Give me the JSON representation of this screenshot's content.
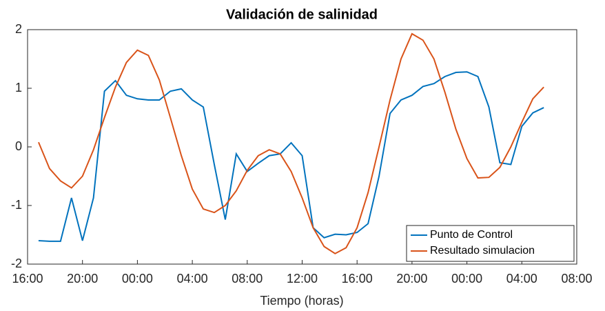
{
  "chart_data": {
    "type": "line",
    "title": "Validación de salinidad",
    "xlabel": "Tiempo (horas)",
    "x": [
      0.8,
      1.6,
      2.4,
      3.2,
      4,
      4.8,
      5.6,
      6.4,
      7.2,
      8,
      8.8,
      9.6,
      10.4,
      11.2,
      12,
      12.8,
      13.6,
      14.4,
      15.2,
      16,
      16.8,
      17.6,
      18.4,
      19.2,
      20,
      20.8,
      21.6,
      22.4,
      23.2,
      24,
      24.8,
      25.6,
      26.4,
      27.2,
      28,
      28.8,
      29.6,
      30.4,
      31.2,
      32,
      32.8,
      33.6,
      34.4,
      35.2,
      36,
      36.8,
      37.6
    ],
    "series": [
      {
        "name": "Punto de Control",
        "color": "#0072bd",
        "values": [
          -1.6,
          -1.61,
          -1.61,
          -0.87,
          -1.6,
          -0.87,
          0.95,
          1.13,
          0.88,
          0.82,
          0.8,
          0.8,
          0.95,
          0.99,
          0.8,
          0.68,
          -0.3,
          -1.24,
          -0.12,
          -0.42,
          -0.28,
          -0.15,
          -0.12,
          0.07,
          -0.15,
          -1.38,
          -1.55,
          -1.49,
          -1.5,
          -1.46,
          -1.31,
          -0.5,
          0.57,
          0.8,
          0.88,
          1.03,
          1.08,
          1.2,
          1.27,
          1.28,
          1.2,
          0.68,
          -0.27,
          -0.3,
          0.35,
          0.58,
          0.67
        ]
      },
      {
        "name": "Resultado simulacion",
        "color": "#d95319",
        "values": [
          0.08,
          -0.37,
          -0.58,
          -0.7,
          -0.5,
          -0.05,
          0.5,
          1.02,
          1.44,
          1.65,
          1.56,
          1.14,
          0.5,
          -0.15,
          -0.72,
          -1.06,
          -1.12,
          -1.0,
          -0.75,
          -0.4,
          -0.15,
          -0.05,
          -0.12,
          -0.42,
          -0.87,
          -1.38,
          -1.7,
          -1.82,
          -1.72,
          -1.38,
          -0.78,
          0.0,
          0.8,
          1.5,
          1.93,
          1.82,
          1.5,
          0.93,
          0.3,
          -0.2,
          -0.53,
          -0.52,
          -0.35,
          0.0,
          0.42,
          0.82,
          1.02
        ]
      }
    ],
    "xlim": [
      0,
      40
    ],
    "xticks": [
      {
        "value": 0,
        "label": "16:00"
      },
      {
        "value": 4,
        "label": "20:00"
      },
      {
        "value": 8,
        "label": "00:00"
      },
      {
        "value": 12,
        "label": "04:00"
      },
      {
        "value": 16,
        "label": "08:00"
      },
      {
        "value": 20,
        "label": "12:00"
      },
      {
        "value": 24,
        "label": "16:00"
      },
      {
        "value": 28,
        "label": "20:00"
      },
      {
        "value": 32,
        "label": "00:00"
      },
      {
        "value": 36,
        "label": "04:00"
      },
      {
        "value": 40,
        "label": "08:00"
      }
    ],
    "ylim": [
      -2,
      2
    ],
    "yticks": [
      -2,
      -1,
      0,
      1,
      2
    ],
    "legend": "lower right",
    "grid": false
  }
}
